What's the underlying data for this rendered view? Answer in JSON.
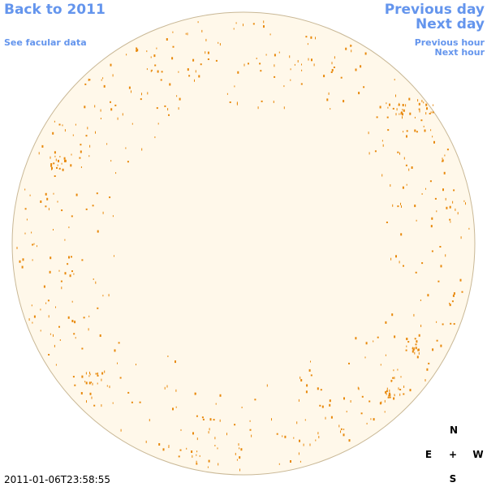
{
  "nav": {
    "back": "Back to 2011",
    "facular": "See facular data",
    "prev_day": "Previous day",
    "next_day": "Next day",
    "prev_hour": "Previous hour",
    "next_hour": "Next hour"
  },
  "timestamp": "2011-01-06T23:58:55",
  "compass": {
    "north": "N",
    "east": "E",
    "center": "+",
    "west": "W",
    "south": "S"
  }
}
